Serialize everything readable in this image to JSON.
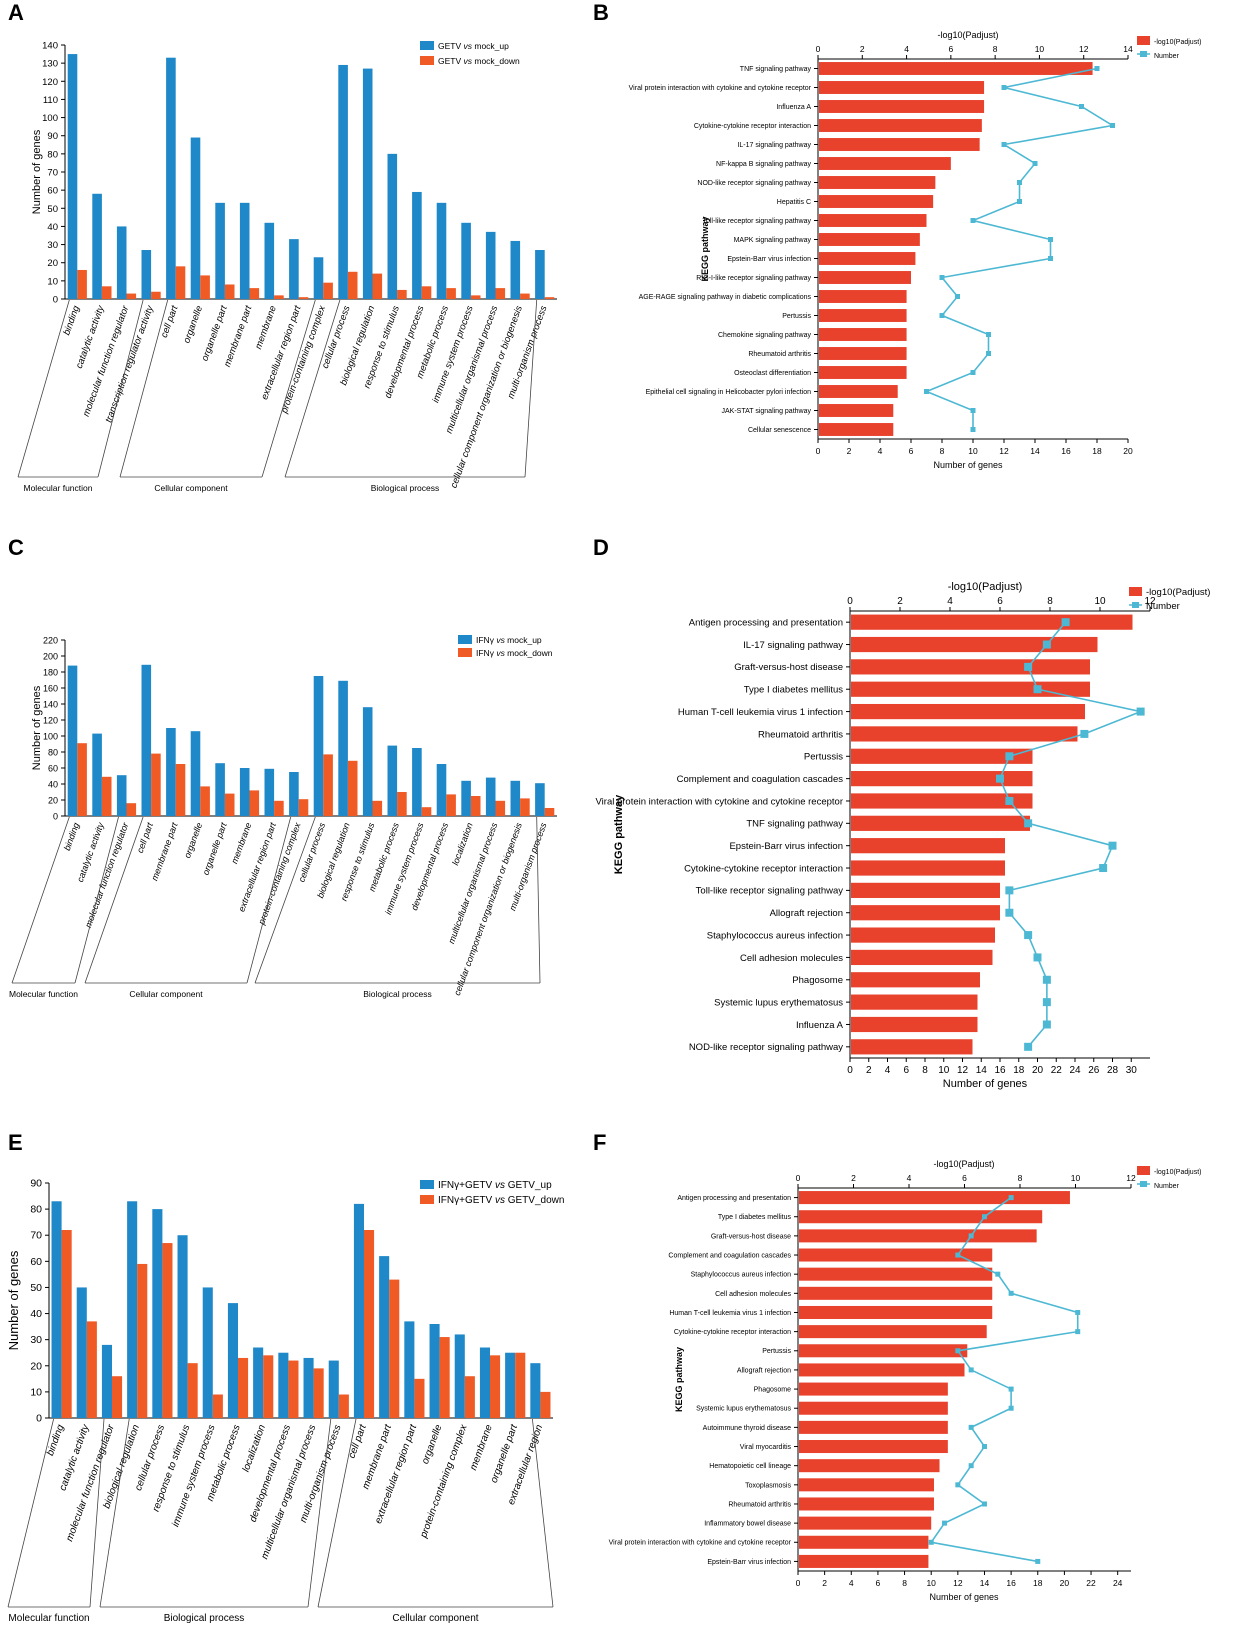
{
  "colors": {
    "blue": "#1E88C9",
    "orange": "#F05A24",
    "red": "#E8412C",
    "cyan": "#4DB8D3"
  },
  "chart_data": [
    {
      "panel": "A",
      "type": "bar",
      "ylabel": "Number of genes",
      "ylim": [
        0,
        140
      ],
      "yticks": [
        0,
        10,
        20,
        30,
        40,
        50,
        60,
        70,
        80,
        90,
        100,
        110,
        120,
        130,
        140
      ],
      "categories": [
        "binding",
        "catalytic activity",
        "molecular function regulator",
        "transcription regulator activity",
        "cell part",
        "organelle",
        "organelle part",
        "membrane part",
        "membrane",
        "extracellular region part",
        "protein-containing complex",
        "cellular process",
        "biological regulation",
        "response to stimulus",
        "developmental process",
        "metabolic process",
        "immune system process",
        "multicellular organismal process",
        "cellular component organization or biogenesis",
        "multi-organism process"
      ],
      "series": [
        {
          "name": "GETV vs mock_up",
          "values": [
            135,
            58,
            40,
            27,
            133,
            89,
            53,
            53,
            42,
            33,
            23,
            129,
            127,
            80,
            59,
            53,
            42,
            37,
            32,
            27
          ]
        },
        {
          "name": "GETV vs mock_down",
          "values": [
            16,
            7,
            3,
            4,
            18,
            13,
            8,
            6,
            2,
            1,
            9,
            15,
            14,
            5,
            7,
            6,
            2,
            6,
            3,
            1
          ]
        }
      ],
      "legend": [
        {
          "pre": "GETV ",
          "vs": "vs",
          "post": " mock_up"
        },
        {
          "pre": "GETV ",
          "vs": "vs",
          "post": " mock_down"
        }
      ],
      "groups": [
        {
          "label": "Molecular function",
          "from": 0,
          "to": 3
        },
        {
          "label": "Cellular component",
          "from": 4,
          "to": 10
        },
        {
          "label": "Biological process",
          "from": 11,
          "to": 19
        }
      ]
    },
    {
      "panel": "B",
      "type": "bar",
      "title": "-log10(Padjust)",
      "xlabel": "Number of genes",
      "ylabel": "KEGG pathway",
      "xlim_top": [
        0,
        14
      ],
      "xticks_top": [
        0,
        2,
        4,
        6,
        8,
        10,
        12,
        14
      ],
      "xlim_bottom": [
        0,
        20
      ],
      "xticks_bottom": [
        0,
        2,
        4,
        6,
        8,
        10,
        12,
        14,
        16,
        18,
        20
      ],
      "legend": [
        "-log10(Padjust)",
        "Number"
      ],
      "categories": [
        "TNF signaling pathway",
        "Viral protein interaction with cytokine and cytokine receptor",
        "Influenza A",
        "Cytokine-cytokine receptor interaction",
        "IL-17 signaling pathway",
        "NF-kappa B signaling pathway",
        "NOD-like receptor signaling pathway",
        "Hepatitis C",
        "Toll-like receptor signaling pathway",
        "MAPK signaling pathway",
        "Epstein-Barr virus infection",
        "RIG-I-like receptor signaling pathway",
        "AGE-RAGE signaling pathway in diabetic complications",
        "Pertussis",
        "Chemokine signaling pathway",
        "Rheumatoid arthritis",
        "Osteoclast differentiation",
        "Epithelial cell signaling in Helicobacter pylori infection",
        "JAK-STAT signaling pathway",
        "Cellular senescence"
      ],
      "series": [
        {
          "name": "-log10(Padjust)",
          "values": [
            12.4,
            7.5,
            7.5,
            7.4,
            7.3,
            6.0,
            5.3,
            5.2,
            4.9,
            4.6,
            4.4,
            4.2,
            4.0,
            4.0,
            4.0,
            4.0,
            4.0,
            3.6,
            3.4,
            3.4
          ]
        },
        {
          "name": "Number",
          "values": [
            18,
            12,
            17,
            19,
            12,
            14,
            13,
            13,
            10,
            15,
            15,
            8,
            9,
            8,
            11,
            11,
            10,
            7,
            10,
            10
          ]
        }
      ]
    },
    {
      "panel": "C",
      "type": "bar",
      "ylabel": "Number of genes",
      "ylim": [
        0,
        220
      ],
      "yticks": [
        0,
        20,
        40,
        60,
        80,
        100,
        120,
        140,
        160,
        180,
        200,
        220
      ],
      "categories": [
        "binding",
        "catalytic activity",
        "molecular function regulator",
        "cell part",
        "membrane part",
        "organelle",
        "organelle part",
        "membrane",
        "extracellular region part",
        "protein-containing complex",
        "cellular process",
        "biological regulation",
        "response to stimulus",
        "metabolic process",
        "immune system process",
        "developmental process",
        "localization",
        "multicellular organismal process",
        "cellular component organization or biogenesis",
        "multi-organism process"
      ],
      "series": [
        {
          "name": "IFNγ vs mock_up",
          "values": [
            188,
            103,
            51,
            189,
            110,
            106,
            66,
            60,
            59,
            55,
            175,
            169,
            136,
            88,
            85,
            65,
            44,
            48,
            44,
            41
          ]
        },
        {
          "name": "IFNγ vs mock_down",
          "values": [
            91,
            49,
            16,
            78,
            65,
            37,
            28,
            32,
            19,
            21,
            77,
            69,
            19,
            30,
            11,
            27,
            25,
            19,
            22,
            10
          ]
        }
      ],
      "legend": [
        {
          "pre": "IFNγ ",
          "vs": "vs",
          "post": " mock_up"
        },
        {
          "pre": "IFNγ ",
          "vs": "vs",
          "post": " mock_down"
        }
      ],
      "groups": [
        {
          "label": "Molecular function",
          "from": 0,
          "to": 2
        },
        {
          "label": "Cellular component",
          "from": 3,
          "to": 9
        },
        {
          "label": "Biological process",
          "from": 10,
          "to": 19
        }
      ]
    },
    {
      "panel": "D",
      "type": "bar",
      "title": "-log10(Padjust)",
      "xlabel": "Number of genes",
      "ylabel": "KEGG pathway",
      "xlim_top": [
        0,
        12
      ],
      "xticks_top": [
        0,
        2,
        4,
        6,
        8,
        10,
        12
      ],
      "xlim_bottom": [
        0,
        32
      ],
      "xticks_bottom": [
        0,
        2,
        4,
        6,
        8,
        10,
        12,
        14,
        16,
        18,
        20,
        22,
        24,
        26,
        28,
        30
      ],
      "legend": [
        "-log10(Padjust)",
        "Number"
      ],
      "categories": [
        "Antigen processing and presentation",
        "IL-17 signaling pathway",
        "Graft-versus-host disease",
        "Type I diabetes mellitus",
        "Human T-cell leukemia virus 1 infection",
        "Rheumatoid arthritis",
        "Pertussis",
        "Complement and coagulation cascades",
        "Viral protein interaction with cytokine and cytokine receptor",
        "TNF signaling pathway",
        "Epstein-Barr virus infection",
        "Cytokine-cytokine receptor interaction",
        "Toll-like receptor signaling pathway",
        "Allograft rejection",
        "Staphylococcus aureus infection",
        "Cell adhesion molecules",
        "Phagosome",
        "Systemic lupus erythematosus",
        "Influenza A",
        "NOD-like receptor signaling pathway"
      ],
      "series": [
        {
          "name": "-log10(Padjust)",
          "values": [
            11.3,
            9.9,
            9.6,
            9.6,
            9.4,
            9.1,
            7.3,
            7.3,
            7.3,
            7.2,
            6.2,
            6.2,
            6.0,
            6.0,
            5.8,
            5.7,
            5.2,
            5.1,
            5.1,
            4.9
          ]
        },
        {
          "name": "Number",
          "values": [
            23,
            21,
            19,
            20,
            31,
            25,
            17,
            16,
            17,
            19,
            28,
            27,
            17,
            17,
            19,
            20,
            21,
            21,
            21,
            19
          ]
        }
      ]
    },
    {
      "panel": "E",
      "type": "bar",
      "ylabel": "Number of genes",
      "ylim": [
        0,
        90
      ],
      "yticks": [
        0,
        10,
        20,
        30,
        40,
        50,
        60,
        70,
        80,
        90
      ],
      "categories": [
        "binding",
        "catalytic activity",
        "molecular function regulator",
        "biological regulation",
        "cellular process",
        "response to stimulus",
        "immune system process",
        "metabolic process",
        "localization",
        "developmental process",
        "multicellular organismal process",
        "multi-organism process",
        "cell part",
        "membrane part",
        "extracellular region part",
        "organelle",
        "protein-containing complex",
        "membrane",
        "organelle part",
        "extracellular region"
      ],
      "series": [
        {
          "name": "IFNγ+GETV vs GETV_up",
          "values": [
            83,
            50,
            28,
            83,
            80,
            70,
            50,
            44,
            27,
            25,
            23,
            22,
            82,
            62,
            37,
            36,
            32,
            27,
            25,
            21
          ]
        },
        {
          "name": "IFNγ+GETV vs GETV_down",
          "values": [
            72,
            37,
            16,
            59,
            67,
            21,
            9,
            23,
            24,
            22,
            19,
            9,
            72,
            53,
            15,
            31,
            16,
            24,
            25,
            10
          ]
        }
      ],
      "legend": [
        {
          "pre": "IFNγ+GETV ",
          "vs": "vs",
          "post": " GETV_up"
        },
        {
          "pre": "IFNγ+GETV ",
          "vs": "vs",
          "post": " GETV_down"
        }
      ],
      "groups": [
        {
          "label": "Molecular function",
          "from": 0,
          "to": 2
        },
        {
          "label": "Biological process",
          "from": 3,
          "to": 11
        },
        {
          "label": "Cellular component",
          "from": 12,
          "to": 19
        }
      ]
    },
    {
      "panel": "F",
      "type": "bar",
      "title": "-log10(Padjust)",
      "xlabel": "Number of genes",
      "ylabel": "KEGG pathway",
      "xlim_top": [
        0,
        12
      ],
      "xticks_top": [
        0,
        2,
        4,
        6,
        8,
        10,
        12
      ],
      "xlim_bottom": [
        0,
        25
      ],
      "xticks_bottom": [
        0,
        2,
        4,
        6,
        8,
        10,
        12,
        14,
        16,
        18,
        20,
        22,
        24
      ],
      "legend": [
        "-log10(Padjust)",
        "Number"
      ],
      "categories": [
        "Antigen processing and presentation",
        "Type I diabetes mellitus",
        "Graft-versus-host disease",
        "Complement and coagulation cascades",
        "Staphylococcus aureus infection",
        "Cell adhesion molecules",
        "Human T-cell leukemia virus 1 infection",
        "Cytokine-cytokine receptor interaction",
        "Pertussis",
        "Allograft rejection",
        "Phagosome",
        "Systemic lupus erythematosus",
        "Autoimmune thyroid disease",
        "Viral myocarditis",
        "Hematopoietic cell lineage",
        "Toxoplasmosis",
        "Rheumatoid arthritis",
        "Inflammatory bowel disease",
        "Viral protein interaction with cytokine and cytokine receptor",
        "Epstein-Barr virus infection"
      ],
      "series": [
        {
          "name": "-log10(Padjust)",
          "values": [
            9.8,
            8.8,
            8.6,
            7.0,
            7.0,
            7.0,
            7.0,
            6.8,
            6.1,
            6.0,
            5.4,
            5.4,
            5.4,
            5.4,
            5.1,
            4.9,
            4.9,
            4.8,
            4.7,
            4.7
          ]
        },
        {
          "name": "Number",
          "values": [
            16,
            14,
            13,
            12,
            15,
            16,
            21,
            21,
            12,
            13,
            16,
            16,
            13,
            14,
            13,
            12,
            14,
            11,
            10,
            18
          ]
        }
      ]
    }
  ]
}
